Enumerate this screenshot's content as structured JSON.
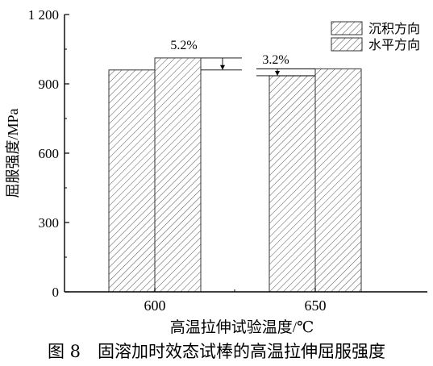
{
  "chart_data": {
    "type": "bar",
    "categories": [
      "600",
      "650"
    ],
    "series": [
      {
        "name": "沉积方向",
        "values": [
          960,
          935
        ]
      },
      {
        "name": "水平方向",
        "values": [
          1012,
          965
        ]
      }
    ],
    "xlabel": "高温拉伸试验温度/℃",
    "ylabel": "屈服强度/MPa",
    "ylim": [
      0,
      1200
    ],
    "yticks": [
      "0",
      "300",
      "600",
      "900",
      "1 200"
    ],
    "annotations": [
      "5.2%",
      "3.2%"
    ],
    "legend_position": "top-right",
    "grid": false,
    "pattern": "diagonal hatch",
    "colors": {
      "bar_fill": "#ffffff",
      "hatch": "#555555",
      "axis": "#000000"
    }
  },
  "caption": "图 8　固溶加时效态试棒的高温拉伸屈服强度"
}
